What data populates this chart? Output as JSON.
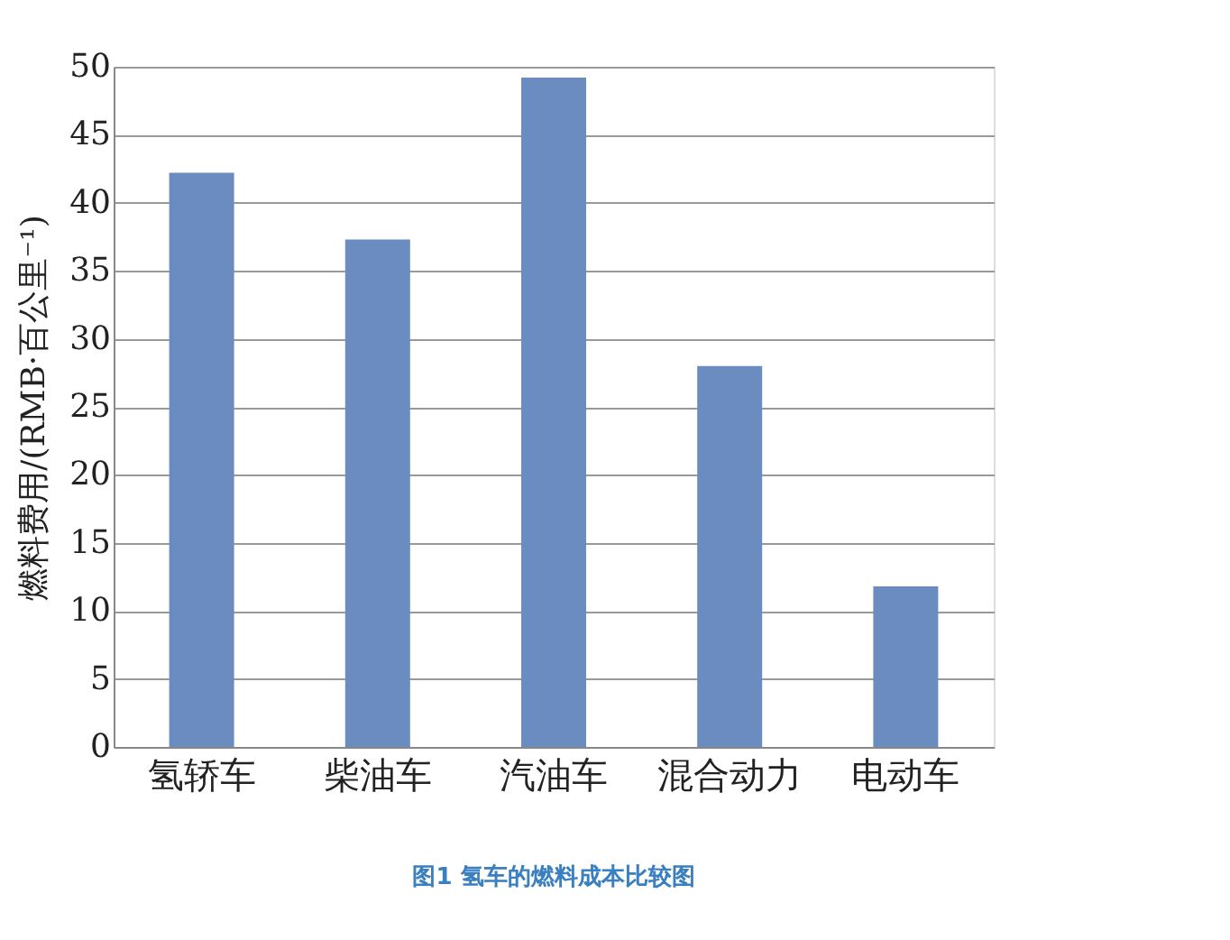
{
  "chart_data": {
    "type": "bar",
    "title": "图1 氢车的燃料成本比较图",
    "ylabel": "燃料费用/(RMB·百公里⁻¹)",
    "categories": [
      "氢轿车",
      "柴油车",
      "汽油车",
      "混合动力",
      "电动车"
    ],
    "values": [
      42.2,
      37.3,
      49.2,
      28.0,
      11.8
    ],
    "color": "#6a8cc0",
    "ylim": [
      0,
      50
    ],
    "yticks": [
      0,
      5,
      10,
      15,
      20,
      25,
      30,
      35,
      40,
      45,
      50
    ],
    "grid": "y"
  }
}
